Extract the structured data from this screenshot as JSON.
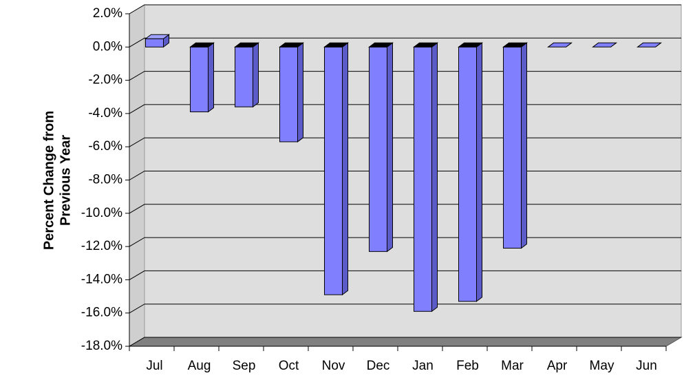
{
  "chart_data": {
    "type": "bar3d",
    "ylabel": [
      "Percent Change from",
      "Previous Year"
    ],
    "categories": [
      "Jul",
      "Aug",
      "Sep",
      "Oct",
      "Nov",
      "Dec",
      "Jan",
      "Feb",
      "Mar",
      "Apr",
      "May",
      "Jun"
    ],
    "values": [
      0.5,
      -3.9,
      -3.6,
      -5.7,
      -14.9,
      -12.3,
      -15.9,
      -15.3,
      -12.1,
      0,
      0,
      0
    ],
    "color": "#8080ff",
    "ylim": [
      -18,
      2
    ],
    "yticks": [
      {
        "value": 2,
        "label": "2.0%"
      },
      {
        "value": 0,
        "label": "0.0%"
      },
      {
        "value": -2,
        "label": "-2.0%"
      },
      {
        "value": -4,
        "label": "-4.0%"
      },
      {
        "value": -6,
        "label": "-6.0%"
      },
      {
        "value": -8,
        "label": "-8.0%"
      },
      {
        "value": -10,
        "label": "-10.0%"
      },
      {
        "value": -12,
        "label": "-12.0%"
      },
      {
        "value": -14,
        "label": "-14.0%"
      },
      {
        "value": -16,
        "label": "-16.0%"
      },
      {
        "value": -18,
        "label": "-18.0%"
      }
    ],
    "grid": true
  }
}
